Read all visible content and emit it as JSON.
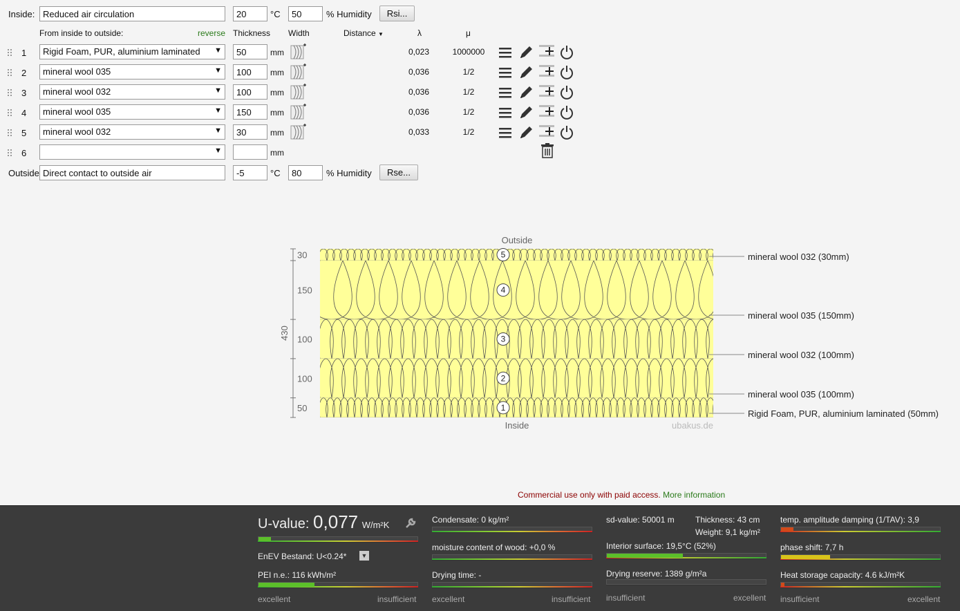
{
  "inside": {
    "label": "Inside:",
    "value": "Reduced air circulation",
    "temp": "20",
    "temp_unit": "°C",
    "humidity": "50",
    "humidity_label": "% Humidity",
    "button": "Rsi..."
  },
  "outside": {
    "label": "Outside",
    "value": "Direct contact to outside air",
    "temp": "-5",
    "temp_unit": "°C",
    "humidity": "80",
    "humidity_label": "% Humidity",
    "button": "Rse..."
  },
  "header": {
    "from_label": "From inside to outside:",
    "reverse": "reverse",
    "thickness": "Thickness",
    "width": "Width",
    "distance": "Distance",
    "lambda": "λ",
    "mu": "μ"
  },
  "unit_mm": "mm",
  "layers": [
    {
      "num": "1",
      "material": "Rigid Foam, PUR, aluminium laminated",
      "thickness": "50",
      "lambda": "0,023",
      "mu": "1000000"
    },
    {
      "num": "2",
      "material": "mineral wool 035",
      "thickness": "100",
      "lambda": "0,036",
      "mu": "1/2"
    },
    {
      "num": "3",
      "material": "mineral wool 032",
      "thickness": "100",
      "lambda": "0,036",
      "mu": "1/2"
    },
    {
      "num": "4",
      "material": "mineral wool 035",
      "thickness": "150",
      "lambda": "0,036",
      "mu": "1/2"
    },
    {
      "num": "5",
      "material": "mineral wool 032",
      "thickness": "30",
      "lambda": "0,033",
      "mu": "1/2"
    },
    {
      "num": "6",
      "material": "",
      "thickness": "",
      "lambda": "",
      "mu": ""
    }
  ],
  "diagram": {
    "outside_label": "Outside",
    "inside_label": "Inside",
    "total": "430",
    "watermark": "ubakus.de",
    "dims": [
      "30",
      "150",
      "100",
      "100",
      "50"
    ],
    "layer_numbers": [
      "5",
      "4",
      "3",
      "2",
      "1"
    ],
    "callouts": [
      "mineral wool 032 (30mm)",
      "mineral wool 035 (150mm)",
      "mineral wool 032 (100mm)",
      "mineral wool 035 (100mm)",
      "Rigid Foam, PUR, aluminium laminated (50mm)"
    ]
  },
  "notice": {
    "text": "Commercial use only with paid access.",
    "link": "More information"
  },
  "results": {
    "uvalue_label": "U-value:",
    "uvalue": "0,077",
    "uvalue_unit": "W/m²K",
    "enev": "EnEV Bestand: U<0.24*",
    "pei": "PEI n.e.: 116 kWh/m²",
    "condensate": "Condensate: 0 kg/m²",
    "moisture": "moisture content of wood: +0,0 %",
    "drying_time": "Drying time: -",
    "sd": "sd-value: 50001 m",
    "thickness": "Thickness: 43 cm",
    "weight": "Weight: 9,1 kg/m²",
    "interior": "Interior surface: 19,5°C (52%)",
    "drying_reserve": "Drying reserve: 1389 g/m²a",
    "temp_amp": "temp. amplitude damping (1/TAV): 3,9",
    "phase": "phase shift: 7,7 h",
    "heat_storage": "Heat storage capacity: 4.6 kJ/m²K",
    "excellent": "excellent",
    "insufficient": "insufficient",
    "levels": {
      "uvalue": 0.08,
      "pei": 0.35,
      "condensate": 0.0,
      "moisture": 0.0,
      "drying_time": 0.0,
      "interior": 0.48,
      "drying_reserve": 0.0,
      "temp_amp": 0.08,
      "phase": 0.31,
      "heat_storage": 0.02
    }
  },
  "colors": {
    "insulation": "#ffff99",
    "accent_green": "#2a7a1a",
    "notice_red": "#8b0000",
    "bottom_bg": "#3b3b3b"
  }
}
